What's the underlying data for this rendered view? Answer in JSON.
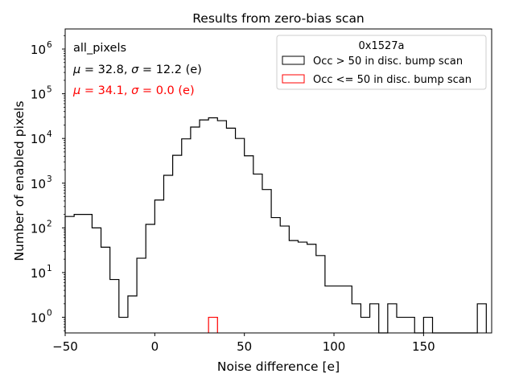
{
  "chart_data": {
    "type": "histogram",
    "title": "Results from zero-bias scan",
    "xlabel": "Noise difference [e]",
    "ylabel": "Number of enabled pixels",
    "xlim": [
      -50,
      188
    ],
    "ylim_log10": [
      -0.35,
      6.45
    ],
    "yscale": "log",
    "x_ticks": [
      {
        "value": -50,
        "label": "−50"
      },
      {
        "value": 0,
        "label": "0"
      },
      {
        "value": 50,
        "label": "50"
      },
      {
        "value": 100,
        "label": "100"
      },
      {
        "value": 150,
        "label": "150"
      }
    ],
    "y_ticks": [
      {
        "exp": 0,
        "base": "10",
        "sup": "0"
      },
      {
        "exp": 1,
        "base": "10",
        "sup": "1"
      },
      {
        "exp": 2,
        "base": "10",
        "sup": "2"
      },
      {
        "exp": 3,
        "base": "10",
        "sup": "3"
      },
      {
        "exp": 4,
        "base": "10",
        "sup": "4"
      },
      {
        "exp": 5,
        "base": "10",
        "sup": "5"
      },
      {
        "exp": 6,
        "base": "10",
        "sup": "6"
      }
    ],
    "bin_start": -50,
    "bin_width": 5,
    "series": [
      {
        "name": "Occ > 50 in disc. bump scan",
        "color": "#000000",
        "counts": [
          180,
          200,
          200,
          100,
          37,
          7,
          1,
          3,
          21,
          120,
          420,
          1500,
          4200,
          9800,
          18000,
          26000,
          29000,
          25000,
          17000,
          10000,
          4100,
          1600,
          720,
          170,
          110,
          52,
          48,
          43,
          24,
          5,
          5,
          5,
          2,
          1,
          2,
          0,
          2,
          1,
          1,
          0,
          1,
          0,
          0,
          0,
          0,
          0,
          2
        ]
      },
      {
        "name": "Occ <= 50 in disc. bump scan",
        "color": "#ff0000",
        "counts": [
          0,
          0,
          0,
          0,
          0,
          0,
          0,
          0,
          0,
          0,
          0,
          0,
          0,
          0,
          0,
          0,
          1,
          0,
          0,
          0,
          0,
          0,
          0,
          0,
          0,
          0,
          0,
          0,
          0,
          0,
          0,
          0,
          0,
          0,
          0,
          0,
          0,
          0,
          0,
          0,
          0,
          0,
          0,
          0,
          0,
          0,
          0
        ]
      }
    ],
    "legend": {
      "title": "0x1527a",
      "placement": "top-right"
    },
    "annotations": [
      {
        "text": "all_pixels",
        "color": "#000000"
      },
      {
        "mu": "32.8",
        "sigma": "12.2",
        "unit": " (e)",
        "color": "#000000"
      },
      {
        "mu": "34.1",
        "sigma": "0.0",
        "unit": " (e)",
        "color": "#ff0000"
      }
    ]
  }
}
